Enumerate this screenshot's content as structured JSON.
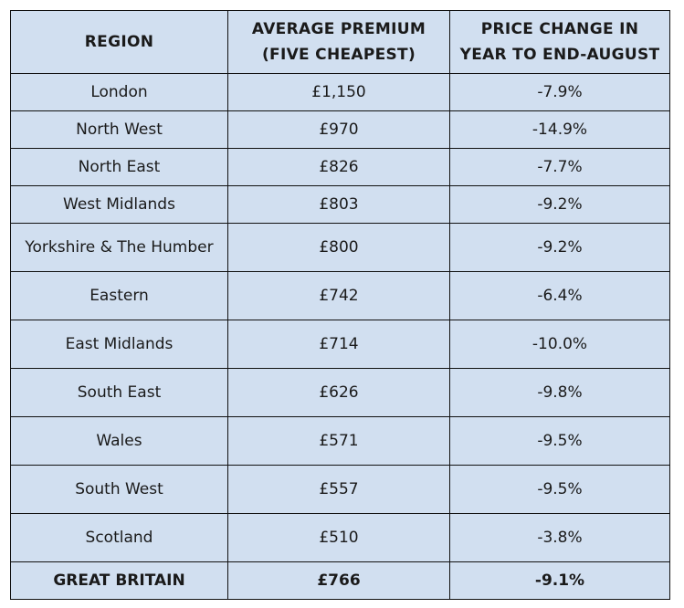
{
  "table": {
    "headers": {
      "region": "REGION",
      "premium": "AVERAGE PREMIUM (FIVE CHEAPEST)",
      "change": "PRICE CHANGE IN YEAR TO END-AUGUST"
    },
    "rows": [
      {
        "region": "London",
        "premium": "£1,150",
        "change": "-7.9%"
      },
      {
        "region": "North West",
        "premium": "£970",
        "change": "-14.9%"
      },
      {
        "region": "North East",
        "premium": "£826",
        "change": "-7.7%"
      },
      {
        "region": "West Midlands",
        "premium": "£803",
        "change": "-9.2%"
      },
      {
        "region": "Yorkshire & The Humber",
        "premium": "£800",
        "change": "-9.2%"
      },
      {
        "region": "Eastern",
        "premium": "£742",
        "change": "-6.4%"
      },
      {
        "region": "East Midlands",
        "premium": "£714",
        "change": "-10.0%"
      },
      {
        "region": "South East",
        "premium": "£626",
        "change": "-9.8%"
      },
      {
        "region": "Wales",
        "premium": "£571",
        "change": "-9.5%"
      },
      {
        "region": "South West",
        "premium": "£557",
        "change": "-9.5%"
      },
      {
        "region": "Scotland",
        "premium": "£510",
        "change": "-3.8%"
      }
    ],
    "total": {
      "region": "GREAT BRITAIN",
      "premium": "£766",
      "change": "-9.1%"
    }
  }
}
